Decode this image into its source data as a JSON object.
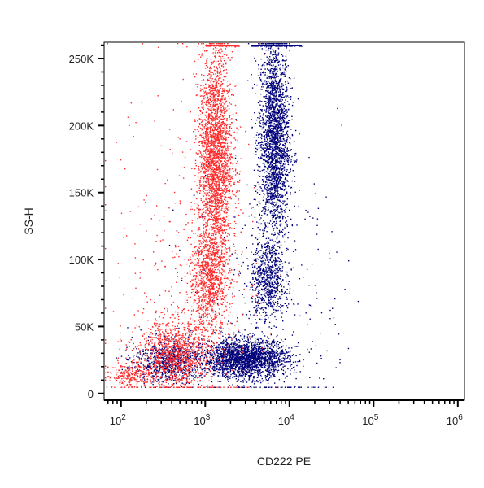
{
  "chart_data": {
    "type": "scatter",
    "title": "",
    "xlabel": "CD222 PE",
    "ylabel": "SS-H",
    "x_scale": "log",
    "xlim": [
      63,
      1200000
    ],
    "ylim": [
      -5000,
      262144
    ],
    "x_tick_labels": [
      {
        "base": "10",
        "exp": "2",
        "value": 100
      },
      {
        "base": "10",
        "exp": "3",
        "value": 1000
      },
      {
        "base": "10",
        "exp": "4",
        "value": 10000
      },
      {
        "base": "10",
        "exp": "5",
        "value": 100000
      },
      {
        "base": "10",
        "exp": "6",
        "value": 1000000
      }
    ],
    "y_ticks": [
      {
        "value": 0,
        "label": "0"
      },
      {
        "value": 50000,
        "label": "50K"
      },
      {
        "value": 100000,
        "label": "100K"
      },
      {
        "value": 150000,
        "label": "150K"
      },
      {
        "value": 200000,
        "label": "200K"
      },
      {
        "value": 250000,
        "label": "250K"
      }
    ],
    "grid": false,
    "legend": "none",
    "series": [
      {
        "color": "#ff2a2a",
        "populations": [
          {
            "x_center": 1300,
            "x_spread_log10": 0.1,
            "y_center": 175000,
            "y_spread": 40000,
            "count": 2600
          },
          {
            "x_center": 1100,
            "x_spread_log10": 0.12,
            "y_center": 85000,
            "y_spread": 20000,
            "count": 900
          },
          {
            "x_center": 450,
            "x_spread_log10": 0.22,
            "y_center": 30000,
            "y_spread": 13000,
            "count": 1100
          },
          {
            "x_center": 130,
            "x_spread_log10": 0.15,
            "y_center": 14000,
            "y_spread": 5000,
            "count": 250
          },
          {
            "x_center": 600,
            "x_spread_log10": 0.45,
            "y_center": 90000,
            "y_spread": 75000,
            "count": 400
          }
        ]
      },
      {
        "color": "#00007a",
        "populations": [
          {
            "x_center": 6500,
            "x_spread_log10": 0.09,
            "y_center": 190000,
            "y_spread": 38000,
            "count": 2400
          },
          {
            "x_center": 5500,
            "x_spread_log10": 0.1,
            "y_center": 85000,
            "y_spread": 15000,
            "count": 700
          },
          {
            "x_center": 3000,
            "x_spread_log10": 0.25,
            "y_center": 26000,
            "y_spread": 7000,
            "count": 2200
          },
          {
            "x_center": 350,
            "x_spread_log10": 0.2,
            "y_center": 24000,
            "y_spread": 8000,
            "count": 800
          },
          {
            "x_center": 5000,
            "x_spread_log10": 0.45,
            "y_center": 70000,
            "y_spread": 60000,
            "count": 350
          }
        ]
      }
    ],
    "saturated_top_band": [
      {
        "color": "#ff2a2a",
        "x_range": [
          1000,
          2500
        ],
        "y": 260000
      },
      {
        "color": "#00007a",
        "x_range": [
          3500,
          14000
        ],
        "y": 260000
      }
    ]
  }
}
